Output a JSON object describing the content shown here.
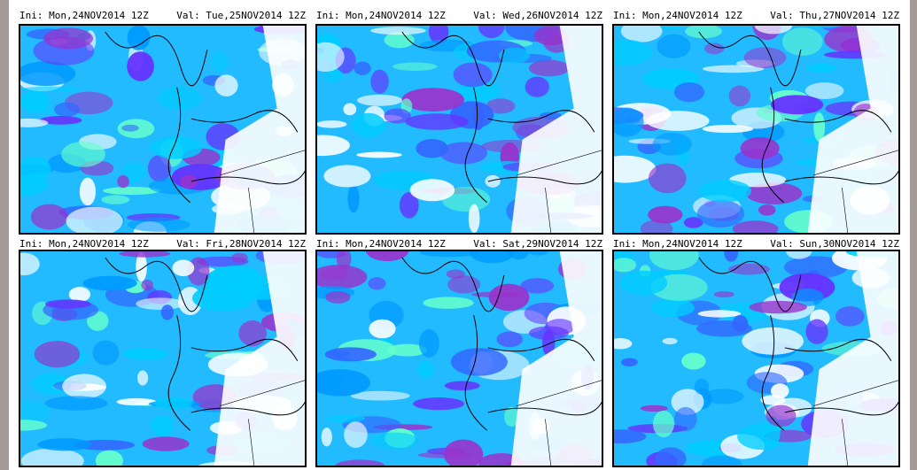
{
  "panels": [
    {
      "ini": "Ini: Mon,24NOV2014 12Z",
      "val": "Val: Tue,25NOV2014 12Z"
    },
    {
      "ini": "Ini: Mon,24NOV2014 12Z",
      "val": "Val: Wed,26NOV2014 12Z"
    },
    {
      "ini": "Ini: Mon,24NOV2014 12Z",
      "val": "Val: Thu,27NOV2014 12Z"
    },
    {
      "ini": "Ini: Mon,24NOV2014 12Z",
      "val": "Val: Fri,28NOV2014 12Z"
    },
    {
      "ini": "Ini: Mon,24NOV2014 12Z",
      "val": "Val: Sat,29NOV2014 12Z"
    },
    {
      "ini": "Ini: Mon,24NOV2014 12Z",
      "val": "Val: Sun,30NOV2014 12Z"
    }
  ]
}
